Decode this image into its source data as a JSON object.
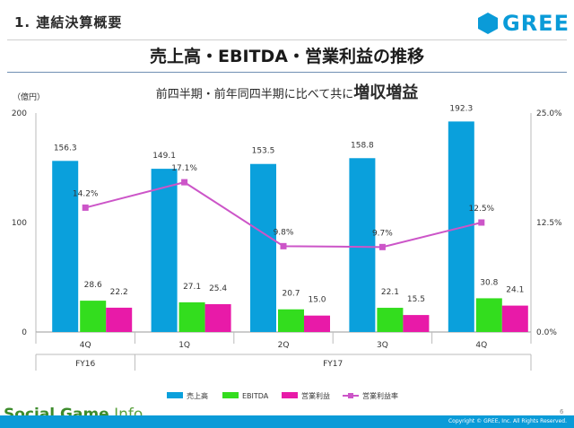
{
  "header": {
    "section_title": "1. 連結決算概要",
    "logo_text": "GREE",
    "main_title": "売上高・EBITDA・営業利益の推移",
    "subtitle_prefix": "前四半期・前年同四半期に比べて共に",
    "subtitle_emphasis": "増収増益"
  },
  "chart_data": {
    "type": "bar",
    "unit_label": "（億円）",
    "categories": [
      "4Q",
      "1Q",
      "2Q",
      "3Q",
      "4Q"
    ],
    "fiscal_years": [
      {
        "label": "FY16",
        "from": 0,
        "to": 0
      },
      {
        "label": "FY17",
        "from": 1,
        "to": 4
      }
    ],
    "y_left": {
      "min": 0,
      "max": 200,
      "ticks": [
        "0",
        "100",
        "200"
      ],
      "tick_values": [
        0,
        100,
        200
      ]
    },
    "y_right": {
      "min": 0,
      "max": 25,
      "ticks": [
        "0.0%",
        "12.5%",
        "25.0%"
      ],
      "tick_values": [
        0,
        12.5,
        25
      ]
    },
    "series": [
      {
        "name": "売上高",
        "color": "#0aa0dc",
        "values": [
          156.3,
          149.1,
          153.5,
          158.8,
          192.3
        ],
        "labels": [
          "156.3",
          "149.1",
          "153.5",
          "158.8",
          "192.3"
        ]
      },
      {
        "name": "EBITDA",
        "color": "#33dd1e",
        "values": [
          28.6,
          27.1,
          20.7,
          22.1,
          30.8
        ],
        "labels": [
          "28.6",
          "27.1",
          "20.7",
          "22.1",
          "30.8"
        ]
      },
      {
        "name": "営業利益",
        "color": "#e81aa8",
        "values": [
          22.2,
          25.4,
          15.0,
          15.5,
          24.1
        ],
        "labels": [
          "22.2",
          "25.4",
          "15.0",
          "15.5",
          "24.1"
        ]
      }
    ],
    "line_series": {
      "name": "営業利益率",
      "color": "#cc55c8",
      "values": [
        14.2,
        17.1,
        9.8,
        9.7,
        12.5
      ],
      "labels": [
        "14.2%",
        "17.1%",
        "9.8%",
        "9.7%",
        "12.5%"
      ]
    }
  },
  "footer": {
    "watermark_bold": "Social Game",
    "watermark_thin": ".Info",
    "page_number": "6",
    "copyright": "Copyright © GREE, Inc. All Rights Reserved."
  }
}
